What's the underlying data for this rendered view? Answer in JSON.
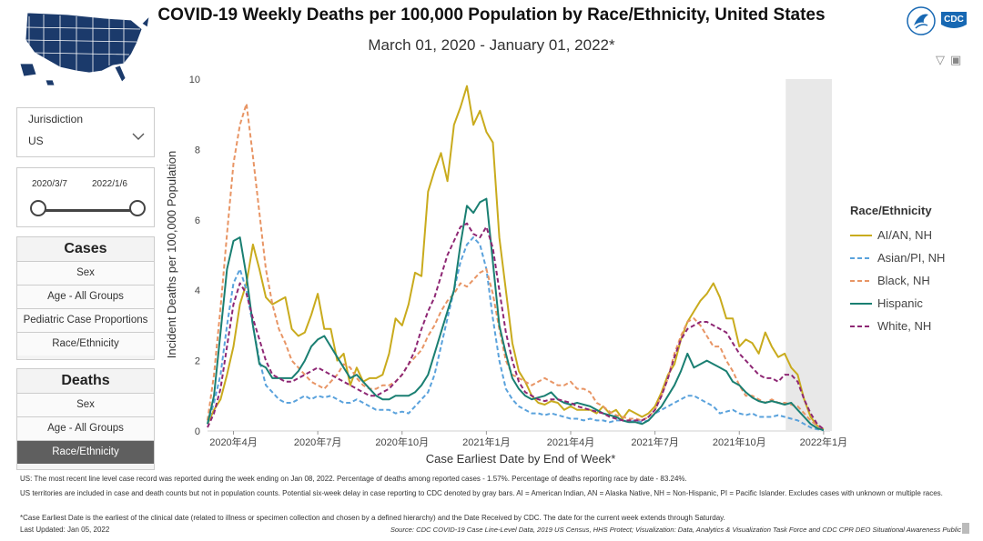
{
  "header": {
    "title": "COVID-19 Weekly Deaths per 100,000 Population by Race/Ethnicity, United States",
    "subtitle": "March 01, 2020 - January 01, 2022*",
    "logo_text": "CDC",
    "colors": {
      "map_fill": "#1b3a6b",
      "logo_blue": "#1768b3"
    }
  },
  "controls": {
    "jurisdiction": {
      "label": "Jurisdiction",
      "value": "US"
    },
    "date_range": {
      "start": "2020/3/7",
      "end": "2022/1/6"
    },
    "cases": {
      "title": "Cases",
      "items": [
        "Sex",
        "Age - All Groups",
        "Pediatric Case Proportions",
        "Race/Ethnicity"
      ]
    },
    "deaths": {
      "title": "Deaths",
      "items": [
        "Sex",
        "Age - All Groups",
        "Race/Ethnicity"
      ],
      "selected": "Race/Ethnicity"
    }
  },
  "legend": {
    "title": "Race/Ethnicity"
  },
  "footer": {
    "note1": "US: The most recent line level case record was reported during the week ending on Jan 08, 2022. Percentage of deaths among reported cases - 1.57%. Percentage of deaths reporting race by date - 83.24%.",
    "note2": "US territories are included in case and death counts but not in population counts. Potential six-week delay in case reporting to CDC denoted by gray bars. AI = American Indian, AN = Alaska Native, NH = Non-Hispanic, PI = Pacific Islander. Excludes cases with unknown or multiple races.",
    "note3": "*Case Earliest Date is the earliest of the clinical date (related to illness or specimen collection and chosen by a defined hierarchy) and the Date Received by CDC. The date for the current week extends through Saturday.",
    "updated": "Last Updated: Jan 05, 2022",
    "source": "Source: CDC COVID-19 Case Line-Level Data, 2019 US Census, HHS Protect; Visualization: Data, Analytics & Visualization Task Force and CDC CPR DEO Situational Awareness Public"
  },
  "chart_data": {
    "type": "line",
    "title": "COVID-19 Weekly Deaths per 100,000 Population by Race/Ethnicity, United States",
    "subtitle": "March 01, 2020 - January 01, 2022*",
    "xlabel": "Case Earliest Date by End of Week*",
    "ylabel": "Incident Deaths per 100,000 Population",
    "ylim": [
      0,
      10
    ],
    "yticks": [
      0,
      2,
      4,
      6,
      8,
      10
    ],
    "x_start": "2020-03-07",
    "x_step": "1 week",
    "xlim_weeks": [
      0,
      96
    ],
    "xticks": [
      {
        "week": 4,
        "label": "2020年4月"
      },
      {
        "week": 17,
        "label": "2020年7月"
      },
      {
        "week": 30,
        "label": "2020年10月"
      },
      {
        "week": 43,
        "label": "2021年1月"
      },
      {
        "week": 56,
        "label": "2021年4月"
      },
      {
        "week": 69,
        "label": "2021年7月"
      },
      {
        "week": 82,
        "label": "2021年10月"
      },
      {
        "week": 95,
        "label": "2022年1月"
      }
    ],
    "shaded_weeks": [
      90,
      96
    ],
    "legend_position": "right",
    "series": [
      {
        "name": "AI/AN, NH",
        "color": "#c9ab1d",
        "dash": false,
        "values": [
          0.2,
          0.6,
          0.9,
          1.6,
          2.4,
          3.6,
          4.2,
          5.3,
          4.6,
          3.8,
          3.6,
          3.7,
          3.8,
          2.9,
          2.7,
          2.8,
          3.3,
          3.9,
          2.9,
          2.9,
          2.0,
          2.2,
          1.3,
          1.8,
          1.4,
          1.5,
          1.5,
          1.6,
          2.2,
          3.2,
          3.0,
          3.6,
          4.5,
          4.4,
          6.8,
          7.4,
          7.9,
          7.1,
          8.7,
          9.2,
          9.8,
          8.7,
          9.1,
          8.5,
          8.2,
          5.5,
          4.0,
          2.5,
          1.7,
          1.4,
          1.0,
          0.8,
          0.75,
          0.85,
          0.8,
          0.6,
          0.7,
          0.6,
          0.6,
          0.6,
          0.5,
          0.7,
          0.5,
          0.6,
          0.35,
          0.6,
          0.5,
          0.4,
          0.5,
          0.7,
          1.1,
          1.6,
          1.9,
          2.6,
          3.1,
          3.4,
          3.7,
          3.9,
          4.2,
          3.8,
          3.2,
          3.2,
          2.4,
          2.6,
          2.5,
          2.2,
          2.8,
          2.4,
          2.1,
          2.2,
          1.8,
          1.6,
          0.9,
          0.4,
          0.15,
          0.05
        ]
      },
      {
        "name": "Asian/PI, NH",
        "color": "#5aa2dc",
        "dash": true,
        "values": [
          0.2,
          0.8,
          1.6,
          3.0,
          4.2,
          4.6,
          4.0,
          3.0,
          2.0,
          1.3,
          1.1,
          0.9,
          0.8,
          0.8,
          0.9,
          1.0,
          0.9,
          1.0,
          0.95,
          1.0,
          0.9,
          0.8,
          0.8,
          0.9,
          0.8,
          0.7,
          0.6,
          0.6,
          0.6,
          0.5,
          0.55,
          0.5,
          0.7,
          0.9,
          1.1,
          1.6,
          2.4,
          3.2,
          4.0,
          4.8,
          5.3,
          5.5,
          5.3,
          4.6,
          3.2,
          2.0,
          1.2,
          0.9,
          0.7,
          0.6,
          0.5,
          0.5,
          0.45,
          0.5,
          0.45,
          0.4,
          0.35,
          0.35,
          0.3,
          0.35,
          0.3,
          0.3,
          0.25,
          0.3,
          0.3,
          0.25,
          0.3,
          0.25,
          0.3,
          0.5,
          0.6,
          0.7,
          0.8,
          0.9,
          1.0,
          1.0,
          0.9,
          0.8,
          0.7,
          0.5,
          0.55,
          0.6,
          0.5,
          0.45,
          0.5,
          0.4,
          0.4,
          0.4,
          0.45,
          0.4,
          0.35,
          0.3,
          0.2,
          0.1,
          0.05,
          0.02
        ]
      },
      {
        "name": "Black, NH",
        "color": "#e89565",
        "dash": true,
        "values": [
          0.3,
          1.6,
          3.5,
          5.6,
          7.6,
          8.7,
          9.3,
          7.8,
          6.2,
          4.6,
          3.6,
          2.9,
          2.5,
          2.0,
          1.8,
          1.6,
          1.4,
          1.3,
          1.2,
          1.4,
          1.6,
          1.9,
          1.8,
          1.5,
          1.3,
          1.2,
          1.2,
          1.3,
          1.3,
          1.4,
          1.6,
          1.9,
          2.1,
          2.3,
          2.7,
          3.0,
          3.4,
          3.7,
          3.9,
          4.2,
          4.1,
          4.3,
          4.5,
          4.6,
          3.9,
          2.9,
          2.0,
          1.6,
          1.5,
          1.4,
          1.3,
          1.4,
          1.5,
          1.4,
          1.3,
          1.3,
          1.4,
          1.2,
          1.2,
          1.1,
          0.8,
          0.7,
          0.55,
          0.45,
          0.4,
          0.35,
          0.35,
          0.3,
          0.4,
          0.6,
          1.0,
          1.5,
          2.2,
          2.7,
          3.1,
          3.2,
          3.0,
          2.7,
          2.4,
          2.4,
          2.0,
          1.7,
          1.3,
          1.0,
          1.0,
          0.9,
          0.8,
          0.9,
          0.8,
          0.8,
          0.75,
          0.7,
          0.5,
          0.3,
          0.15,
          0.05
        ]
      },
      {
        "name": "Hispanic",
        "color": "#1a7f72",
        "dash": false,
        "values": [
          0.2,
          1.0,
          2.8,
          4.6,
          5.4,
          5.5,
          4.4,
          3.0,
          1.9,
          1.8,
          1.5,
          1.5,
          1.5,
          1.5,
          1.7,
          2.0,
          2.4,
          2.6,
          2.7,
          2.4,
          2.1,
          1.8,
          1.5,
          1.6,
          1.4,
          1.2,
          1.0,
          0.9,
          0.9,
          1.0,
          1.0,
          1.0,
          1.1,
          1.3,
          1.6,
          2.2,
          2.8,
          3.4,
          4.0,
          5.3,
          6.4,
          6.2,
          6.5,
          6.6,
          4.8,
          3.0,
          2.2,
          1.5,
          1.2,
          1.0,
          0.9,
          0.95,
          1.0,
          1.1,
          0.9,
          0.8,
          0.75,
          0.8,
          0.75,
          0.7,
          0.6,
          0.5,
          0.45,
          0.4,
          0.3,
          0.25,
          0.25,
          0.2,
          0.3,
          0.5,
          0.7,
          1.0,
          1.3,
          1.7,
          2.2,
          1.8,
          1.9,
          2.0,
          1.9,
          1.8,
          1.7,
          1.4,
          1.3,
          1.1,
          0.95,
          0.85,
          0.8,
          0.85,
          0.8,
          0.75,
          0.8,
          0.6,
          0.4,
          0.2,
          0.08,
          0.02
        ]
      },
      {
        "name": "White, NH",
        "color": "#8e2774",
        "dash": true,
        "values": [
          0.1,
          0.5,
          1.2,
          2.4,
          3.6,
          4.2,
          3.9,
          3.2,
          2.6,
          2.0,
          1.6,
          1.5,
          1.4,
          1.4,
          1.5,
          1.6,
          1.7,
          1.8,
          1.7,
          1.6,
          1.5,
          1.4,
          1.3,
          1.2,
          1.1,
          1.0,
          1.0,
          1.1,
          1.2,
          1.4,
          1.6,
          1.9,
          2.3,
          2.9,
          3.4,
          3.8,
          4.4,
          5.0,
          5.4,
          5.8,
          5.9,
          5.6,
          5.5,
          5.8,
          5.2,
          4.0,
          2.8,
          2.0,
          1.4,
          1.1,
          1.0,
          0.9,
          0.85,
          0.9,
          0.9,
          0.85,
          0.8,
          0.7,
          0.65,
          0.6,
          0.55,
          0.5,
          0.4,
          0.35,
          0.3,
          0.3,
          0.3,
          0.3,
          0.4,
          0.6,
          1.0,
          1.5,
          2.1,
          2.6,
          2.9,
          3.0,
          3.1,
          3.1,
          3.0,
          2.9,
          2.8,
          2.5,
          2.2,
          2.0,
          1.8,
          1.6,
          1.5,
          1.5,
          1.4,
          1.6,
          1.6,
          1.4,
          0.9,
          0.5,
          0.2,
          0.05
        ]
      }
    ]
  }
}
